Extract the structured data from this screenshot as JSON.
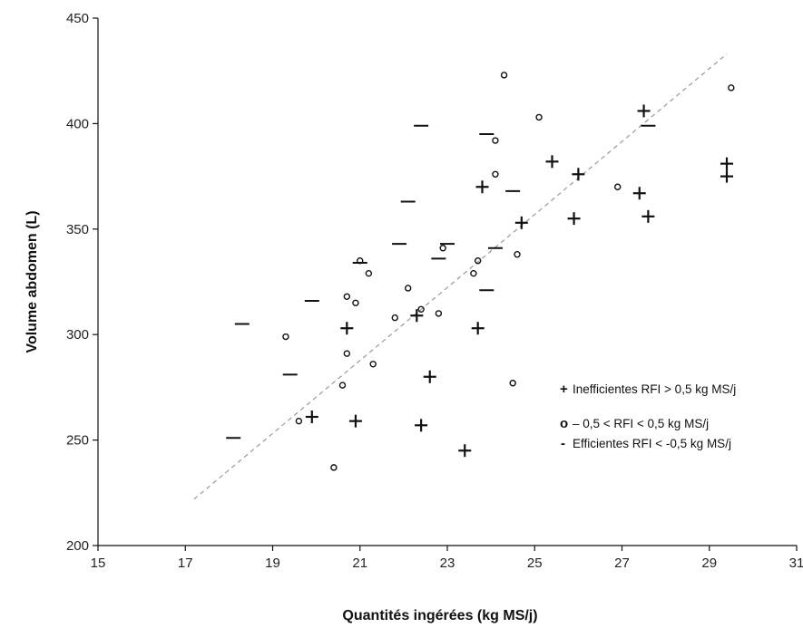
{
  "chart_data": {
    "type": "scatter",
    "xlabel": "Quantités ingérées (kg MS/j)",
    "ylabel": "Volume abdomen (L)",
    "xlim": [
      15,
      31
    ],
    "ylim": [
      200,
      450
    ],
    "xticks": [
      15,
      17,
      19,
      21,
      23,
      25,
      27,
      29,
      31
    ],
    "yticks": [
      200,
      250,
      300,
      350,
      400,
      450
    ],
    "grid": false,
    "legend_position": "right",
    "trendline": {
      "style": "dashed",
      "color": "#999999",
      "x": [
        17.2,
        29.4
      ],
      "y": [
        222,
        433
      ]
    },
    "legend": [
      {
        "symbol": "+",
        "label": "Inefficientes RFI > 0,5 kg MS/j"
      },
      {
        "symbol": "o",
        "label": "– 0,5 < RFI < 0,5 kg MS/j"
      },
      {
        "symbol": "-",
        "label": "Efficientes RFI < -0,5 kg MS/j"
      }
    ],
    "series": [
      {
        "marker": "plus",
        "points": [
          [
            20.7,
            303
          ],
          [
            19.9,
            261
          ],
          [
            20.9,
            259
          ],
          [
            22.3,
            309
          ],
          [
            22.6,
            280
          ],
          [
            22.4,
            257
          ],
          [
            23.4,
            245
          ],
          [
            23.7,
            303
          ],
          [
            23.8,
            370
          ],
          [
            24.7,
            353
          ],
          [
            25.4,
            382
          ],
          [
            26.0,
            376
          ],
          [
            25.9,
            355
          ],
          [
            27.5,
            406
          ],
          [
            27.4,
            367
          ],
          [
            27.6,
            356
          ],
          [
            29.4,
            381
          ],
          [
            29.4,
            375
          ]
        ]
      },
      {
        "marker": "circle",
        "points": [
          [
            19.3,
            299
          ],
          [
            19.6,
            259
          ],
          [
            20.6,
            276
          ],
          [
            20.7,
            291
          ],
          [
            20.7,
            318
          ],
          [
            20.9,
            315
          ],
          [
            21.0,
            335
          ],
          [
            21.2,
            329
          ],
          [
            21.3,
            286
          ],
          [
            20.4,
            237
          ],
          [
            21.8,
            308
          ],
          [
            22.1,
            322
          ],
          [
            22.4,
            312
          ],
          [
            22.8,
            310
          ],
          [
            22.9,
            341
          ],
          [
            23.6,
            329
          ],
          [
            23.7,
            335
          ],
          [
            24.1,
            376
          ],
          [
            24.1,
            392
          ],
          [
            24.3,
            423
          ],
          [
            24.6,
            338
          ],
          [
            24.5,
            277
          ],
          [
            25.1,
            403
          ],
          [
            26.9,
            370
          ],
          [
            29.5,
            417
          ]
        ]
      },
      {
        "marker": "dash",
        "points": [
          [
            18.3,
            305
          ],
          [
            18.1,
            251
          ],
          [
            19.4,
            281
          ],
          [
            19.9,
            316
          ],
          [
            21.0,
            334
          ],
          [
            21.9,
            343
          ],
          [
            22.1,
            363
          ],
          [
            22.4,
            399
          ],
          [
            22.8,
            336
          ],
          [
            23.0,
            343
          ],
          [
            23.9,
            395
          ],
          [
            23.9,
            321
          ],
          [
            24.1,
            341
          ],
          [
            24.5,
            368
          ],
          [
            27.6,
            399
          ]
        ]
      }
    ]
  }
}
